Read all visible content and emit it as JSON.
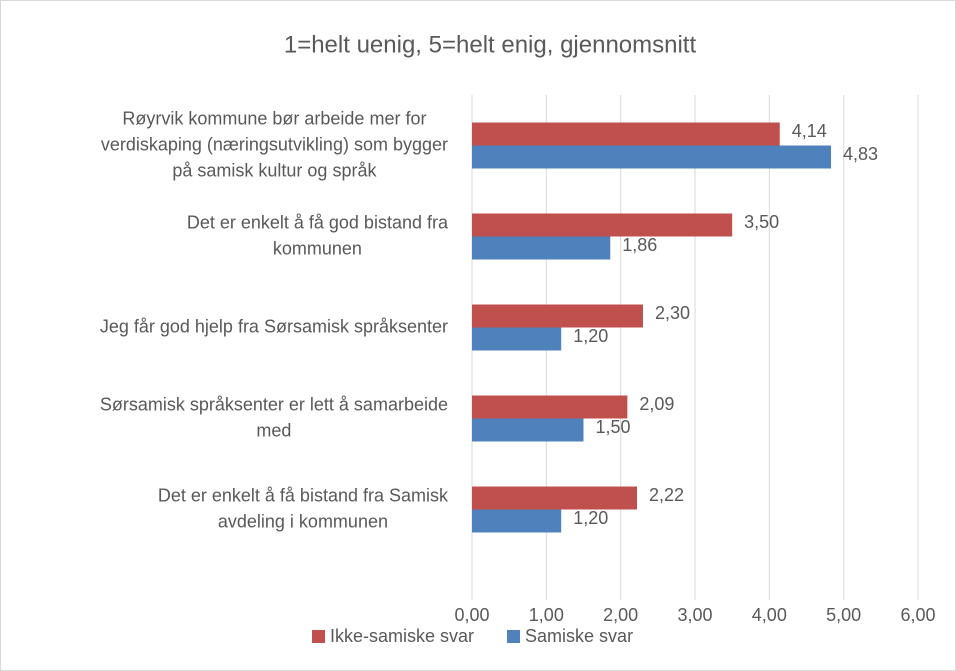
{
  "chart_data": {
    "type": "hbar",
    "title": "1=helt uenig, 5=helt enig, gjennomsnitt",
    "categories": [
      [
        "Røyrvik kommune bør arbeide mer for",
        "verdiskaping (næringsutvikling) som bygger",
        "på samisk kultur og språk"
      ],
      [
        "Det er enkelt å få god bistand fra",
        "kommunen"
      ],
      [
        "Jeg får god hjelp fra Sørsamisk språksenter"
      ],
      [
        "Sørsamisk språksenter er lett å samarbeide",
        "med"
      ],
      [
        "Det er enkelt å få bistand fra Samisk",
        "avdeling i kommunen"
      ]
    ],
    "series": [
      {
        "name": "Ikke-samiske svar",
        "color": "#c0504d",
        "values": [
          4.14,
          3.5,
          2.3,
          2.09,
          2.22
        ],
        "value_labels": [
          "4,14",
          "3,50",
          "2,30",
          "2,09",
          "2,22"
        ]
      },
      {
        "name": "Samiske svar",
        "color": "#4f81bd",
        "values": [
          4.83,
          1.86,
          1.2,
          1.5,
          1.2
        ],
        "value_labels": [
          "4,83",
          "1,86",
          "1,20",
          "1,50",
          "1,20"
        ]
      }
    ],
    "xlim": [
      0,
      6
    ],
    "xticks": [
      {
        "value": 0,
        "label": "0,00"
      },
      {
        "value": 1,
        "label": "1,00"
      },
      {
        "value": 2,
        "label": "2,00"
      },
      {
        "value": 3,
        "label": "3,00"
      },
      {
        "value": 4,
        "label": "4,00"
      },
      {
        "value": 5,
        "label": "5,00"
      },
      {
        "value": 6,
        "label": "6,00"
      }
    ],
    "grid": true,
    "legend": "bottom"
  }
}
